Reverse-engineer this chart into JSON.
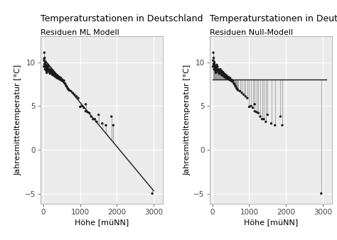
{
  "title": "Temperaturstationen in Deutschland",
  "subtitle_left": "Residuen ML Modell",
  "subtitle_right": "Residuen Null-Modell",
  "xlabel": "Höhe [müNN]",
  "ylabel": "Jahresmitteltemperatur [°C]",
  "bg_color": "#EBEBEB",
  "grid_color": "#FFFFFF",
  "point_color": "#1a1a1a",
  "line_color": "#1a1a1a",
  "residual_color": "#999999",
  "xlim": [
    -80,
    3250
  ],
  "ylim": [
    -6.2,
    13.0
  ],
  "xticks": [
    0,
    1000,
    2000,
    3000
  ],
  "yticks": [
    -5,
    0,
    5,
    10
  ],
  "ml_intercept": 10.45,
  "ml_slope": -0.00505,
  "null_mean": 8.05,
  "stations": [
    [
      15,
      9.5
    ],
    [
      20,
      10.2
    ],
    [
      25,
      11.1
    ],
    [
      30,
      9.8
    ],
    [
      35,
      10.5
    ],
    [
      40,
      9.7
    ],
    [
      45,
      9.2
    ],
    [
      50,
      9.8
    ],
    [
      55,
      10.0
    ],
    [
      60,
      9.5
    ],
    [
      65,
      9.3
    ],
    [
      70,
      9.6
    ],
    [
      75,
      9.1
    ],
    [
      80,
      9.4
    ],
    [
      85,
      9.0
    ],
    [
      90,
      8.8
    ],
    [
      95,
      9.2
    ],
    [
      100,
      9.5
    ],
    [
      110,
      9.3
    ],
    [
      120,
      9.7
    ],
    [
      130,
      9.1
    ],
    [
      140,
      9.5
    ],
    [
      150,
      8.9
    ],
    [
      160,
      9.2
    ],
    [
      170,
      9.0
    ],
    [
      180,
      8.7
    ],
    [
      190,
      9.1
    ],
    [
      200,
      9.0
    ],
    [
      210,
      8.8
    ],
    [
      220,
      9.2
    ],
    [
      230,
      8.9
    ],
    [
      240,
      8.6
    ],
    [
      250,
      9.0
    ],
    [
      260,
      8.8
    ],
    [
      270,
      8.5
    ],
    [
      280,
      8.9
    ],
    [
      290,
      8.6
    ],
    [
      300,
      8.8
    ],
    [
      310,
      8.4
    ],
    [
      320,
      8.7
    ],
    [
      330,
      8.5
    ],
    [
      340,
      8.3
    ],
    [
      350,
      8.6
    ],
    [
      360,
      8.4
    ],
    [
      370,
      8.2
    ],
    [
      380,
      8.5
    ],
    [
      390,
      8.2
    ],
    [
      400,
      8.4
    ],
    [
      420,
      8.1
    ],
    [
      440,
      8.3
    ],
    [
      460,
      8.0
    ],
    [
      480,
      8.2
    ],
    [
      500,
      7.9
    ],
    [
      520,
      8.0
    ],
    [
      540,
      7.8
    ],
    [
      560,
      7.9
    ],
    [
      580,
      7.6
    ],
    [
      600,
      7.5
    ],
    [
      620,
      7.3
    ],
    [
      640,
      7.2
    ],
    [
      660,
      7.0
    ],
    [
      680,
      6.9
    ],
    [
      700,
      6.8
    ],
    [
      750,
      6.7
    ],
    [
      800,
      6.5
    ],
    [
      850,
      6.3
    ],
    [
      900,
      6.1
    ],
    [
      950,
      5.9
    ],
    [
      1000,
      4.9
    ],
    [
      1050,
      5.0
    ],
    [
      1100,
      4.8
    ],
    [
      1150,
      5.2
    ],
    [
      1150,
      4.4
    ],
    [
      1200,
      4.3
    ],
    [
      1250,
      4.2
    ],
    [
      1300,
      3.8
    ],
    [
      1350,
      3.5
    ],
    [
      1400,
      3.5
    ],
    [
      1450,
      3.2
    ],
    [
      1500,
      4.0
    ],
    [
      1600,
      3.0
    ],
    [
      1700,
      2.8
    ],
    [
      1850,
      3.8
    ],
    [
      1900,
      2.8
    ],
    [
      2960,
      -5.0
    ]
  ],
  "title_fontsize": 9,
  "subtitle_fontsize": 8,
  "axis_label_fontsize": 8,
  "tick_fontsize": 7.5
}
